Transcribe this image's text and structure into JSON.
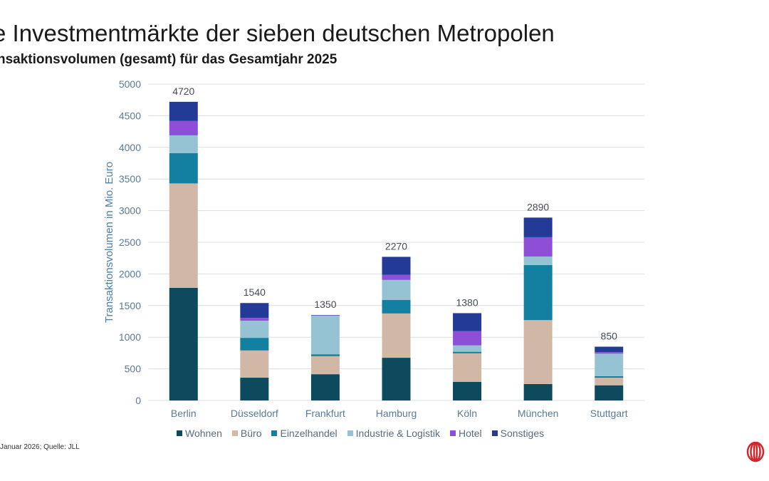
{
  "header": {
    "title": "e Investmentmärkte der sieben deutschen Metropolen",
    "subtitle": "nsaktionsvolumen (gesamt) für das Gesamtjahr 2025"
  },
  "footer": {
    "source": "Januar 2026; Quelle: JLL"
  },
  "chart_data": {
    "type": "bar",
    "stacked": true,
    "title": "",
    "xlabel": "",
    "ylabel": "Transaktionsvolumen in Mio. Euro",
    "ylim": [
      0,
      5000
    ],
    "yticks": [
      0,
      500,
      1000,
      1500,
      2000,
      2500,
      3000,
      3500,
      4000,
      4500,
      5000
    ],
    "grid": true,
    "legend_position": "bottom",
    "categories": [
      "Berlin",
      "Düsseldorf",
      "Frankfurt",
      "Hamburg",
      "Köln",
      "München",
      "Stuttgart"
    ],
    "totals": [
      4720,
      1540,
      1350,
      2270,
      1380,
      2890,
      850
    ],
    "series": [
      {
        "name": "Wohnen",
        "color": "#0d4a5e",
        "values": [
          1780,
          360,
          415,
          675,
          295,
          260,
          240
        ]
      },
      {
        "name": "Büro",
        "color": "#d1b8a6",
        "values": [
          1650,
          430,
          285,
          700,
          450,
          1010,
          120
        ]
      },
      {
        "name": "Einzelhandel",
        "color": "#1380a2",
        "values": [
          480,
          200,
          30,
          215,
          25,
          870,
          25
        ]
      },
      {
        "name": "Industrie & Logistik",
        "color": "#96c3d3",
        "values": [
          280,
          270,
          610,
          315,
          100,
          135,
          355
        ]
      },
      {
        "name": "Hotel",
        "color": "#8e4fd6",
        "values": [
          230,
          45,
          5,
          80,
          225,
          305,
          25
        ]
      },
      {
        "name": "Sonstiges",
        "color": "#233a96",
        "values": [
          300,
          235,
          5,
          285,
          285,
          310,
          85
        ]
      }
    ]
  }
}
